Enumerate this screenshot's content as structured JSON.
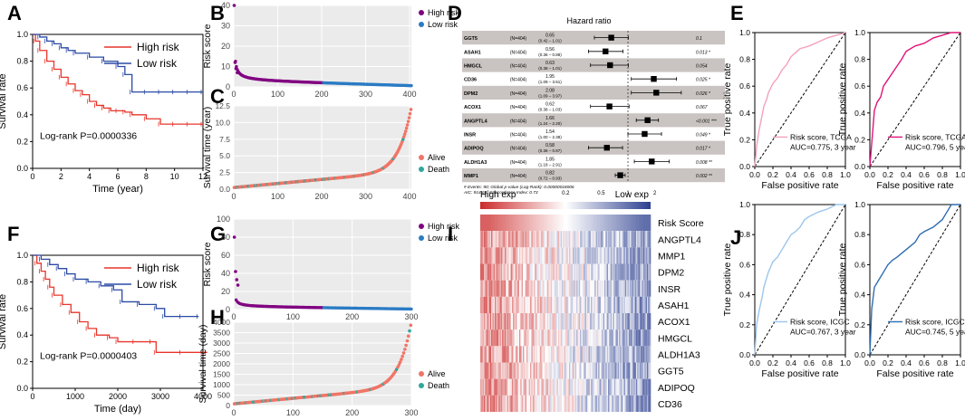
{
  "panel_letters": [
    "A",
    "B",
    "C",
    "D",
    "E",
    "F",
    "G",
    "H",
    "I",
    "J"
  ],
  "colors": {
    "high_risk": "#e8352b",
    "low_risk": "#2a4aa5",
    "purple": "#800080",
    "blue_pt": "#2b7bc4",
    "alive": "#f07567",
    "death": "#2fa79c",
    "roc_pink": "#f4a0be",
    "roc_magenta": "#e0147a",
    "roc_lightblue": "#9cc6ec",
    "roc_blue": "#2f6cb0",
    "forest_band": "#c9c4c1",
    "heat_high": "#cc2b2b",
    "heat_low": "#2b3e8f"
  },
  "chart_data": [
    {
      "id": "A",
      "type": "line",
      "title": "",
      "xlabel": "Time (year)",
      "ylabel": "Survival rate",
      "xlim": [
        0,
        12
      ],
      "ylim": [
        0,
        1
      ],
      "xticks": [
        "0",
        "2",
        "4",
        "6",
        "8",
        "10",
        "12"
      ],
      "yticks": [
        "0.0",
        "0.2",
        "0.4",
        "0.6",
        "0.8",
        "1.0"
      ],
      "legend": [
        "High risk",
        "Low risk"
      ],
      "annotation": "Log-rank P=0.0000336",
      "series": [
        {
          "name": "High risk",
          "x": [
            0,
            0.2,
            0.5,
            1,
            1.5,
            2,
            2.5,
            3,
            3.5,
            4,
            4.5,
            5,
            5.5,
            6,
            6.5,
            7,
            8,
            9,
            10,
            11,
            12
          ],
          "y": [
            1,
            0.95,
            0.88,
            0.8,
            0.74,
            0.68,
            0.63,
            0.58,
            0.55,
            0.5,
            0.47,
            0.45,
            0.43,
            0.43,
            0.42,
            0.4,
            0.37,
            0.33,
            0.33,
            0.33,
            0.33
          ]
        },
        {
          "name": "Low risk",
          "x": [
            0,
            0.5,
            1,
            1.5,
            2,
            2.5,
            3,
            4,
            5,
            6,
            6.5,
            7,
            8,
            9,
            10,
            11,
            12
          ],
          "y": [
            1,
            0.98,
            0.95,
            0.93,
            0.9,
            0.88,
            0.86,
            0.83,
            0.8,
            0.76,
            0.7,
            0.57,
            0.57,
            0.57,
            0.57,
            0.57,
            0.57
          ]
        }
      ]
    },
    {
      "id": "B",
      "type": "scatter",
      "title": "",
      "xlabel": "",
      "ylabel": "Risk score",
      "xlim": [
        0,
        404
      ],
      "ylim": [
        0,
        40
      ],
      "xticks": [
        "0",
        "100",
        "200",
        "300",
        "400"
      ],
      "yticks": [
        "0",
        "10",
        "20",
        "30",
        "40"
      ],
      "legend": [
        "High risk",
        "Low risk"
      ],
      "n": 404,
      "cutoff": 202,
      "outliers": [
        {
          "x": 1,
          "y": 40
        },
        {
          "x": 3,
          "y": 12
        },
        {
          "x": 5,
          "y": 9
        },
        {
          "x": 8,
          "y": 7
        }
      ],
      "curve": {
        "a": 4.2,
        "b": 2.4,
        "scale": 28
      }
    },
    {
      "id": "C",
      "type": "scatter",
      "title": "",
      "xlabel": "",
      "ylabel": "Survival time (year)",
      "xlim": [
        0,
        404
      ],
      "ylim": [
        0,
        12.5
      ],
      "xticks": [
        "0",
        "100",
        "200",
        "300",
        "400"
      ],
      "yticks": [
        "0.0",
        "2.5",
        "5.0",
        "7.5",
        "10.0",
        "12.5"
      ],
      "legend": [
        "Alive",
        "Death"
      ],
      "n": 404,
      "ymax": 12.3
    },
    {
      "id": "D",
      "type": "table",
      "title": "Hazard ratio",
      "rows": [
        {
          "gene": "GGT5",
          "n": "(N=404)",
          "hr": "0.65",
          "ci": "(0.42 – 1.01)",
          "p": "0.1",
          "est": 0.65,
          "lo": 0.42,
          "hi": 1.01
        },
        {
          "gene": "ASAH1",
          "n": "(N=404)",
          "hr": "0.56",
          "ci": "(0.36 – 0.88)",
          "p": "0.013 *",
          "est": 0.56,
          "lo": 0.36,
          "hi": 0.88
        },
        {
          "gene": "HMGCL",
          "n": "(N=404)",
          "hr": "0.63",
          "ci": "(0.38 – 1.01)",
          "p": "0.054",
          "est": 0.63,
          "lo": 0.38,
          "hi": 1.01
        },
        {
          "gene": "CD36",
          "n": "(N=404)",
          "hr": "1.95",
          "ci": "(1.09 – 3.51)",
          "p": "0.025 *",
          "est": 1.95,
          "lo": 1.09,
          "hi": 3.51
        },
        {
          "gene": "DPM2",
          "n": "(N=404)",
          "hr": "2.08",
          "ci": "(1.09 – 3.97)",
          "p": "0.026 *",
          "est": 2.08,
          "lo": 1.09,
          "hi": 3.97
        },
        {
          "gene": "ACOX1",
          "n": "(N=404)",
          "hr": "0.62",
          "ci": "(0.38 – 1.03)",
          "p": "0.067",
          "est": 0.62,
          "lo": 0.38,
          "hi": 1.03
        },
        {
          "gene": "ANGPTL4",
          "n": "(N=404)",
          "hr": "1.66",
          "ci": "(1.24 – 2.20)",
          "p": "<0.001 ***",
          "est": 1.66,
          "lo": 1.24,
          "hi": 2.2
        },
        {
          "gene": "INSR",
          "n": "(N=404)",
          "hr": "1.54",
          "ci": "(1.00 – 2.38)",
          "p": "0.049 *",
          "est": 1.54,
          "lo": 1.0,
          "hi": 2.38
        },
        {
          "gene": "ADIPOQ",
          "n": "(N=404)",
          "hr": "0.58",
          "ci": "(0.36 – 0.87)",
          "p": "0.017 *",
          "est": 0.58,
          "lo": 0.36,
          "hi": 0.87
        },
        {
          "gene": "ALDH1A3",
          "n": "(N=404)",
          "hr": "1.85",
          "ci": "(1.18 – 2.91)",
          "p": "0.008 **",
          "est": 1.85,
          "lo": 1.18,
          "hi": 2.91
        },
        {
          "gene": "MMP1",
          "n": "(N=404)",
          "hr": "0.82",
          "ci": "(0.72 – 0.93)",
          "p": "0.002 **",
          "est": 0.82,
          "lo": 0.72,
          "hi": 0.93
        }
      ],
      "footnote1": "# Events: 90; Global p-value (Log-Rank): 0.00000018006",
      "footnote2": "AIC: 914.65; Concordance Index: 0.73",
      "xticks": [
        "0.2",
        "0.5",
        "1",
        "2"
      ],
      "xtick_values": [
        0.2,
        0.5,
        1,
        2
      ],
      "xlim_log": [
        0.15,
        4.8
      ]
    },
    {
      "id": "E1",
      "type": "line",
      "title": "",
      "xlabel": "False positive rate",
      "ylabel": "True positive rate",
      "xlim": [
        0,
        1
      ],
      "ylim": [
        0,
        1
      ],
      "xticks": [
        "0.0",
        "0.2",
        "0.4",
        "0.6",
        "0.8",
        "1.0"
      ],
      "yticks": [
        "0.0",
        "0.2",
        "0.4",
        "0.6",
        "0.8",
        "1.0"
      ],
      "legend": [
        "Risk score, TCGA"
      ],
      "annotation": "AUC=0.775, 3 year",
      "x": [
        0,
        0.02,
        0.05,
        0.08,
        0.1,
        0.13,
        0.15,
        0.2,
        0.25,
        0.3,
        0.35,
        0.4,
        0.45,
        0.5,
        0.6,
        0.7,
        0.8,
        0.9,
        1.0
      ],
      "y": [
        0,
        0.15,
        0.28,
        0.38,
        0.45,
        0.5,
        0.55,
        0.62,
        0.66,
        0.72,
        0.76,
        0.82,
        0.85,
        0.88,
        0.9,
        0.93,
        0.96,
        0.98,
        1.0
      ]
    },
    {
      "id": "E2",
      "type": "line",
      "title": "",
      "xlabel": "False positive rate",
      "ylabel": "True positive rate",
      "xlim": [
        0,
        1
      ],
      "ylim": [
        0,
        1
      ],
      "xticks": [
        "0.0",
        "0.2",
        "0.4",
        "0.6",
        "0.8",
        "1.0"
      ],
      "yticks": [
        "0.0",
        "0.2",
        "0.4",
        "0.6",
        "0.8",
        "1.0"
      ],
      "legend": [
        "Risk score, TCGA"
      ],
      "annotation": "AUC=0.796, 5 year",
      "x": [
        0,
        0.03,
        0.05,
        0.08,
        0.12,
        0.15,
        0.2,
        0.25,
        0.3,
        0.35,
        0.4,
        0.5,
        0.6,
        0.7,
        0.8,
        0.9,
        1.0
      ],
      "y": [
        0,
        0.25,
        0.42,
        0.48,
        0.52,
        0.6,
        0.65,
        0.7,
        0.75,
        0.8,
        0.86,
        0.9,
        0.92,
        0.96,
        0.98,
        1.0,
        1.0
      ]
    },
    {
      "id": "F",
      "type": "line",
      "title": "",
      "xlabel": "Time (day)",
      "ylabel": "Survival rate",
      "xlim": [
        0,
        4000
      ],
      "ylim": [
        0,
        1
      ],
      "xticks": [
        "0",
        "1000",
        "2000",
        "3000",
        "4000"
      ],
      "yticks": [
        "0.0",
        "0.2",
        "0.4",
        "0.6",
        "0.8",
        "1.0"
      ],
      "legend": [
        "High risk",
        "Low risk"
      ],
      "annotation": "Log-rank P=0.0000403",
      "series": [
        {
          "name": "High risk",
          "x": [
            0,
            100,
            200,
            300,
            400,
            500,
            700,
            900,
            1100,
            1300,
            1500,
            1800,
            2000,
            2400,
            2800,
            2900,
            3500,
            4000,
            4100
          ],
          "y": [
            1,
            0.94,
            0.88,
            0.82,
            0.76,
            0.7,
            0.63,
            0.57,
            0.5,
            0.45,
            0.4,
            0.38,
            0.35,
            0.35,
            0.35,
            0.27,
            0.27,
            0.27,
            0.27
          ]
        },
        {
          "name": "Low risk",
          "x": [
            0,
            200,
            400,
            600,
            800,
            1000,
            1300,
            1600,
            1900,
            2100,
            2500,
            2900,
            3100,
            3500,
            3900
          ],
          "y": [
            1,
            0.97,
            0.93,
            0.9,
            0.86,
            0.82,
            0.8,
            0.77,
            0.74,
            0.65,
            0.63,
            0.6,
            0.54,
            0.54,
            0.54
          ]
        }
      ]
    },
    {
      "id": "G",
      "type": "scatter",
      "title": "",
      "xlabel": "",
      "ylabel": "Risk score",
      "xlim": [
        0,
        300
      ],
      "ylim": [
        0,
        100
      ],
      "xticks": [
        "0",
        "100",
        "200",
        "300"
      ],
      "yticks": [
        "0",
        "20",
        "40",
        "60",
        "80",
        "100"
      ],
      "legend": [
        "High risk",
        "Low risk"
      ],
      "n": 300,
      "cutoff": 150,
      "outliers": [
        {
          "x": 1,
          "y": 80
        },
        {
          "x": 3,
          "y": 42
        },
        {
          "x": 5,
          "y": 33
        },
        {
          "x": 7,
          "y": 27
        }
      ],
      "curve": {
        "a": 5.5,
        "b": 2.6,
        "scale": 22
      }
    },
    {
      "id": "H",
      "type": "scatter",
      "title": "",
      "xlabel": "Number of patients",
      "ylabel": "Survival time (day)",
      "xlim": [
        0,
        300
      ],
      "ylim": [
        0,
        4000
      ],
      "xticks": [
        "0",
        "100",
        "200",
        "300"
      ],
      "yticks": [
        "0",
        "500",
        "1000",
        "1500",
        "2000",
        "2500",
        "3000",
        "3500",
        "4000"
      ],
      "legend": [
        "Alive",
        "Death"
      ],
      "n": 300,
      "ymax": 4000
    },
    {
      "id": "I",
      "type": "heatmap",
      "title": "",
      "legend_left": "High exp",
      "legend_right": "Low exp",
      "rows": [
        "Risk Score",
        "ANGPTL4",
        "MMP1",
        "DPM2",
        "INSR",
        "ASAH1",
        "ACOX1",
        "HMGCL",
        "ALDH1A3",
        "GGT5",
        "ADIPOQ",
        "CD36"
      ],
      "columns": 140
    },
    {
      "id": "J1",
      "type": "line",
      "title": "",
      "xlabel": "False positive rate",
      "ylabel": "True positive rate",
      "xlim": [
        0,
        1
      ],
      "ylim": [
        0,
        1
      ],
      "xticks": [
        "0.0",
        "0.2",
        "0.4",
        "0.6",
        "0.8",
        "1.0"
      ],
      "yticks": [
        "0.0",
        "0.2",
        "0.4",
        "0.6",
        "0.8",
        "1.0"
      ],
      "legend": [
        "Risk score, ICGC"
      ],
      "annotation": "AUC=0.767, 3 year",
      "x": [
        0,
        0.02,
        0.05,
        0.08,
        0.1,
        0.15,
        0.2,
        0.25,
        0.3,
        0.35,
        0.4,
        0.45,
        0.5,
        0.55,
        0.6,
        0.7,
        0.8,
        0.9,
        1.0
      ],
      "y": [
        0,
        0.2,
        0.3,
        0.38,
        0.45,
        0.55,
        0.62,
        0.65,
        0.7,
        0.75,
        0.8,
        0.82,
        0.85,
        0.9,
        0.92,
        0.95,
        0.97,
        1.0,
        1.0
      ]
    },
    {
      "id": "J2",
      "type": "line",
      "title": "",
      "xlabel": "False positive rate",
      "ylabel": "True positive rate",
      "xlim": [
        0,
        1
      ],
      "ylim": [
        0,
        1
      ],
      "xticks": [
        "0.0",
        "0.2",
        "0.4",
        "0.6",
        "0.8",
        "1.0"
      ],
      "yticks": [
        "0.0",
        "0.2",
        "0.4",
        "0.6",
        "0.8",
        "1.0"
      ],
      "legend": [
        "Risk score, ICGC"
      ],
      "annotation": "AUC=0.745, 5 year",
      "x": [
        0,
        0.02,
        0.05,
        0.1,
        0.15,
        0.2,
        0.25,
        0.3,
        0.4,
        0.5,
        0.55,
        0.6,
        0.7,
        0.8,
        0.85,
        0.9,
        1.0
      ],
      "y": [
        0,
        0.3,
        0.45,
        0.5,
        0.55,
        0.6,
        0.63,
        0.65,
        0.7,
        0.75,
        0.8,
        0.82,
        0.85,
        0.9,
        0.95,
        1.0,
        1.0
      ]
    }
  ]
}
